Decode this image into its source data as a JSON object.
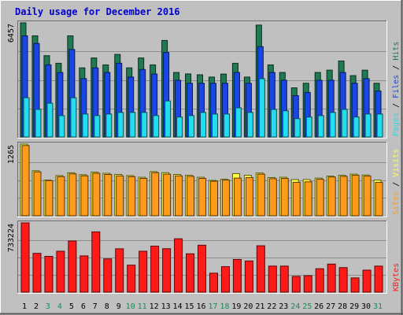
{
  "title": "Daily usage for December 2016",
  "colors": {
    "background": "#c0c0c0",
    "panel": "#c0c0c0",
    "title_text": "#0000cc",
    "hits": "#1f7a52",
    "files": "#1a46e6",
    "pages": "#22dcef",
    "visits": "#ffff45",
    "sites": "#ff9a1a",
    "kbytes": "#ff1a1a",
    "weekend_label": "#1c8a5a",
    "weekday_label": "#000000",
    "grid": "#8c8c8c"
  },
  "chart_data": [
    {
      "type": "bar",
      "panel": "hits-files-pages",
      "categories": [
        "1",
        "2",
        "3",
        "4",
        "5",
        "6",
        "7",
        "8",
        "9",
        "10",
        "11",
        "12",
        "13",
        "14",
        "15",
        "16",
        "17",
        "18",
        "19",
        "20",
        "21",
        "22",
        "23",
        "24",
        "25",
        "26",
        "27",
        "28",
        "29",
        "30",
        "31"
      ],
      "ymax_label": "6457",
      "ylim": [
        0,
        6457
      ],
      "series": [
        {
          "name": "Hits",
          "values": [
            6457,
            5720,
            4600,
            4170,
            5720,
            3910,
            4470,
            4080,
            4670,
            3910,
            4470,
            4080,
            5460,
            3650,
            3570,
            3520,
            3390,
            3560,
            4170,
            3390,
            6330,
            4080,
            3650,
            2780,
            3040,
            3650,
            3780,
            4300,
            3470,
            3780,
            3040
          ]
        },
        {
          "name": "Files",
          "values": [
            5720,
            5290,
            4080,
            3650,
            4950,
            3300,
            3910,
            3650,
            4170,
            3390,
            3820,
            3560,
            4780,
            3210,
            3040,
            3040,
            3040,
            3040,
            3650,
            3040,
            5110,
            3650,
            3210,
            2340,
            2520,
            3210,
            3210,
            3650,
            3040,
            3300,
            2600
          ]
        },
        {
          "name": "Pages",
          "values": [
            2220,
            1560,
            1910,
            1210,
            2220,
            1300,
            1210,
            1300,
            1390,
            1390,
            1390,
            1210,
            2040,
            1130,
            1210,
            1390,
            1300,
            1300,
            1650,
            1390,
            3300,
            1560,
            1480,
            1040,
            1130,
            1210,
            1390,
            1560,
            1130,
            1300,
            1300
          ]
        }
      ],
      "legend": [
        "Pages",
        "Files",
        "Hits"
      ],
      "legend_separator": "/"
    },
    {
      "type": "bar",
      "panel": "visits-sites",
      "categories": [
        "1",
        "2",
        "3",
        "4",
        "5",
        "6",
        "7",
        "8",
        "9",
        "10",
        "11",
        "12",
        "13",
        "14",
        "15",
        "16",
        "17",
        "18",
        "19",
        "20",
        "21",
        "22",
        "23",
        "24",
        "25",
        "26",
        "27",
        "28",
        "29",
        "30",
        "31"
      ],
      "ymax_label": "1265",
      "ylim": [
        0,
        1265
      ],
      "series": [
        {
          "name": "Visits",
          "values": [
            1265,
            795,
            630,
            710,
            760,
            725,
            770,
            750,
            730,
            710,
            680,
            780,
            760,
            730,
            715,
            680,
            625,
            645,
            745,
            715,
            755,
            675,
            680,
            640,
            640,
            665,
            700,
            715,
            735,
            720,
            630
          ]
        },
        {
          "name": "Sites",
          "values": [
            1240,
            775,
            620,
            690,
            740,
            705,
            750,
            730,
            705,
            690,
            660,
            760,
            735,
            705,
            695,
            660,
            610,
            630,
            665,
            675,
            735,
            655,
            660,
            590,
            600,
            645,
            685,
            695,
            715,
            700,
            590
          ]
        }
      ],
      "legend": [
        "Sites",
        "Visits"
      ],
      "legend_separator": "/"
    },
    {
      "type": "bar",
      "panel": "kbytes",
      "categories": [
        "1",
        "2",
        "3",
        "4",
        "5",
        "6",
        "7",
        "8",
        "9",
        "10",
        "11",
        "12",
        "13",
        "14",
        "15",
        "16",
        "17",
        "18",
        "19",
        "20",
        "21",
        "22",
        "23",
        "24",
        "25",
        "26",
        "27",
        "28",
        "29",
        "30",
        "31"
      ],
      "ymax_label": "733224",
      "ylim": [
        0,
        733224
      ],
      "series": [
        {
          "name": "KBytes",
          "values": [
            733224,
            411000,
            379000,
            433000,
            541000,
            384000,
            638000,
            352000,
            459000,
            286000,
            433000,
            487000,
            460000,
            565000,
            406000,
            497000,
            201000,
            270000,
            346000,
            330000,
            491000,
            276000,
            276000,
            167000,
            174000,
            248000,
            297000,
            260000,
            151000,
            233000,
            276000
          ]
        }
      ],
      "legend": [
        "KBytes"
      ]
    }
  ],
  "x_labels": [
    {
      "text": "1",
      "weekend": false
    },
    {
      "text": "2",
      "weekend": false
    },
    {
      "text": "3",
      "weekend": true
    },
    {
      "text": "4",
      "weekend": true
    },
    {
      "text": "5",
      "weekend": false
    },
    {
      "text": "6",
      "weekend": false
    },
    {
      "text": "7",
      "weekend": false
    },
    {
      "text": "8",
      "weekend": false
    },
    {
      "text": "9",
      "weekend": false
    },
    {
      "text": "10",
      "weekend": true
    },
    {
      "text": "11",
      "weekend": true
    },
    {
      "text": "12",
      "weekend": false
    },
    {
      "text": "13",
      "weekend": false
    },
    {
      "text": "14",
      "weekend": false
    },
    {
      "text": "15",
      "weekend": false
    },
    {
      "text": "16",
      "weekend": false
    },
    {
      "text": "17",
      "weekend": true
    },
    {
      "text": "18",
      "weekend": true
    },
    {
      "text": "19",
      "weekend": false
    },
    {
      "text": "20",
      "weekend": false
    },
    {
      "text": "21",
      "weekend": false
    },
    {
      "text": "22",
      "weekend": false
    },
    {
      "text": "23",
      "weekend": false
    },
    {
      "text": "24",
      "weekend": true
    },
    {
      "text": "25",
      "weekend": true
    },
    {
      "text": "26",
      "weekend": false
    },
    {
      "text": "27",
      "weekend": false
    },
    {
      "text": "28",
      "weekend": false
    },
    {
      "text": "29",
      "weekend": false
    },
    {
      "text": "30",
      "weekend": false
    },
    {
      "text": "31",
      "weekend": true
    }
  ]
}
